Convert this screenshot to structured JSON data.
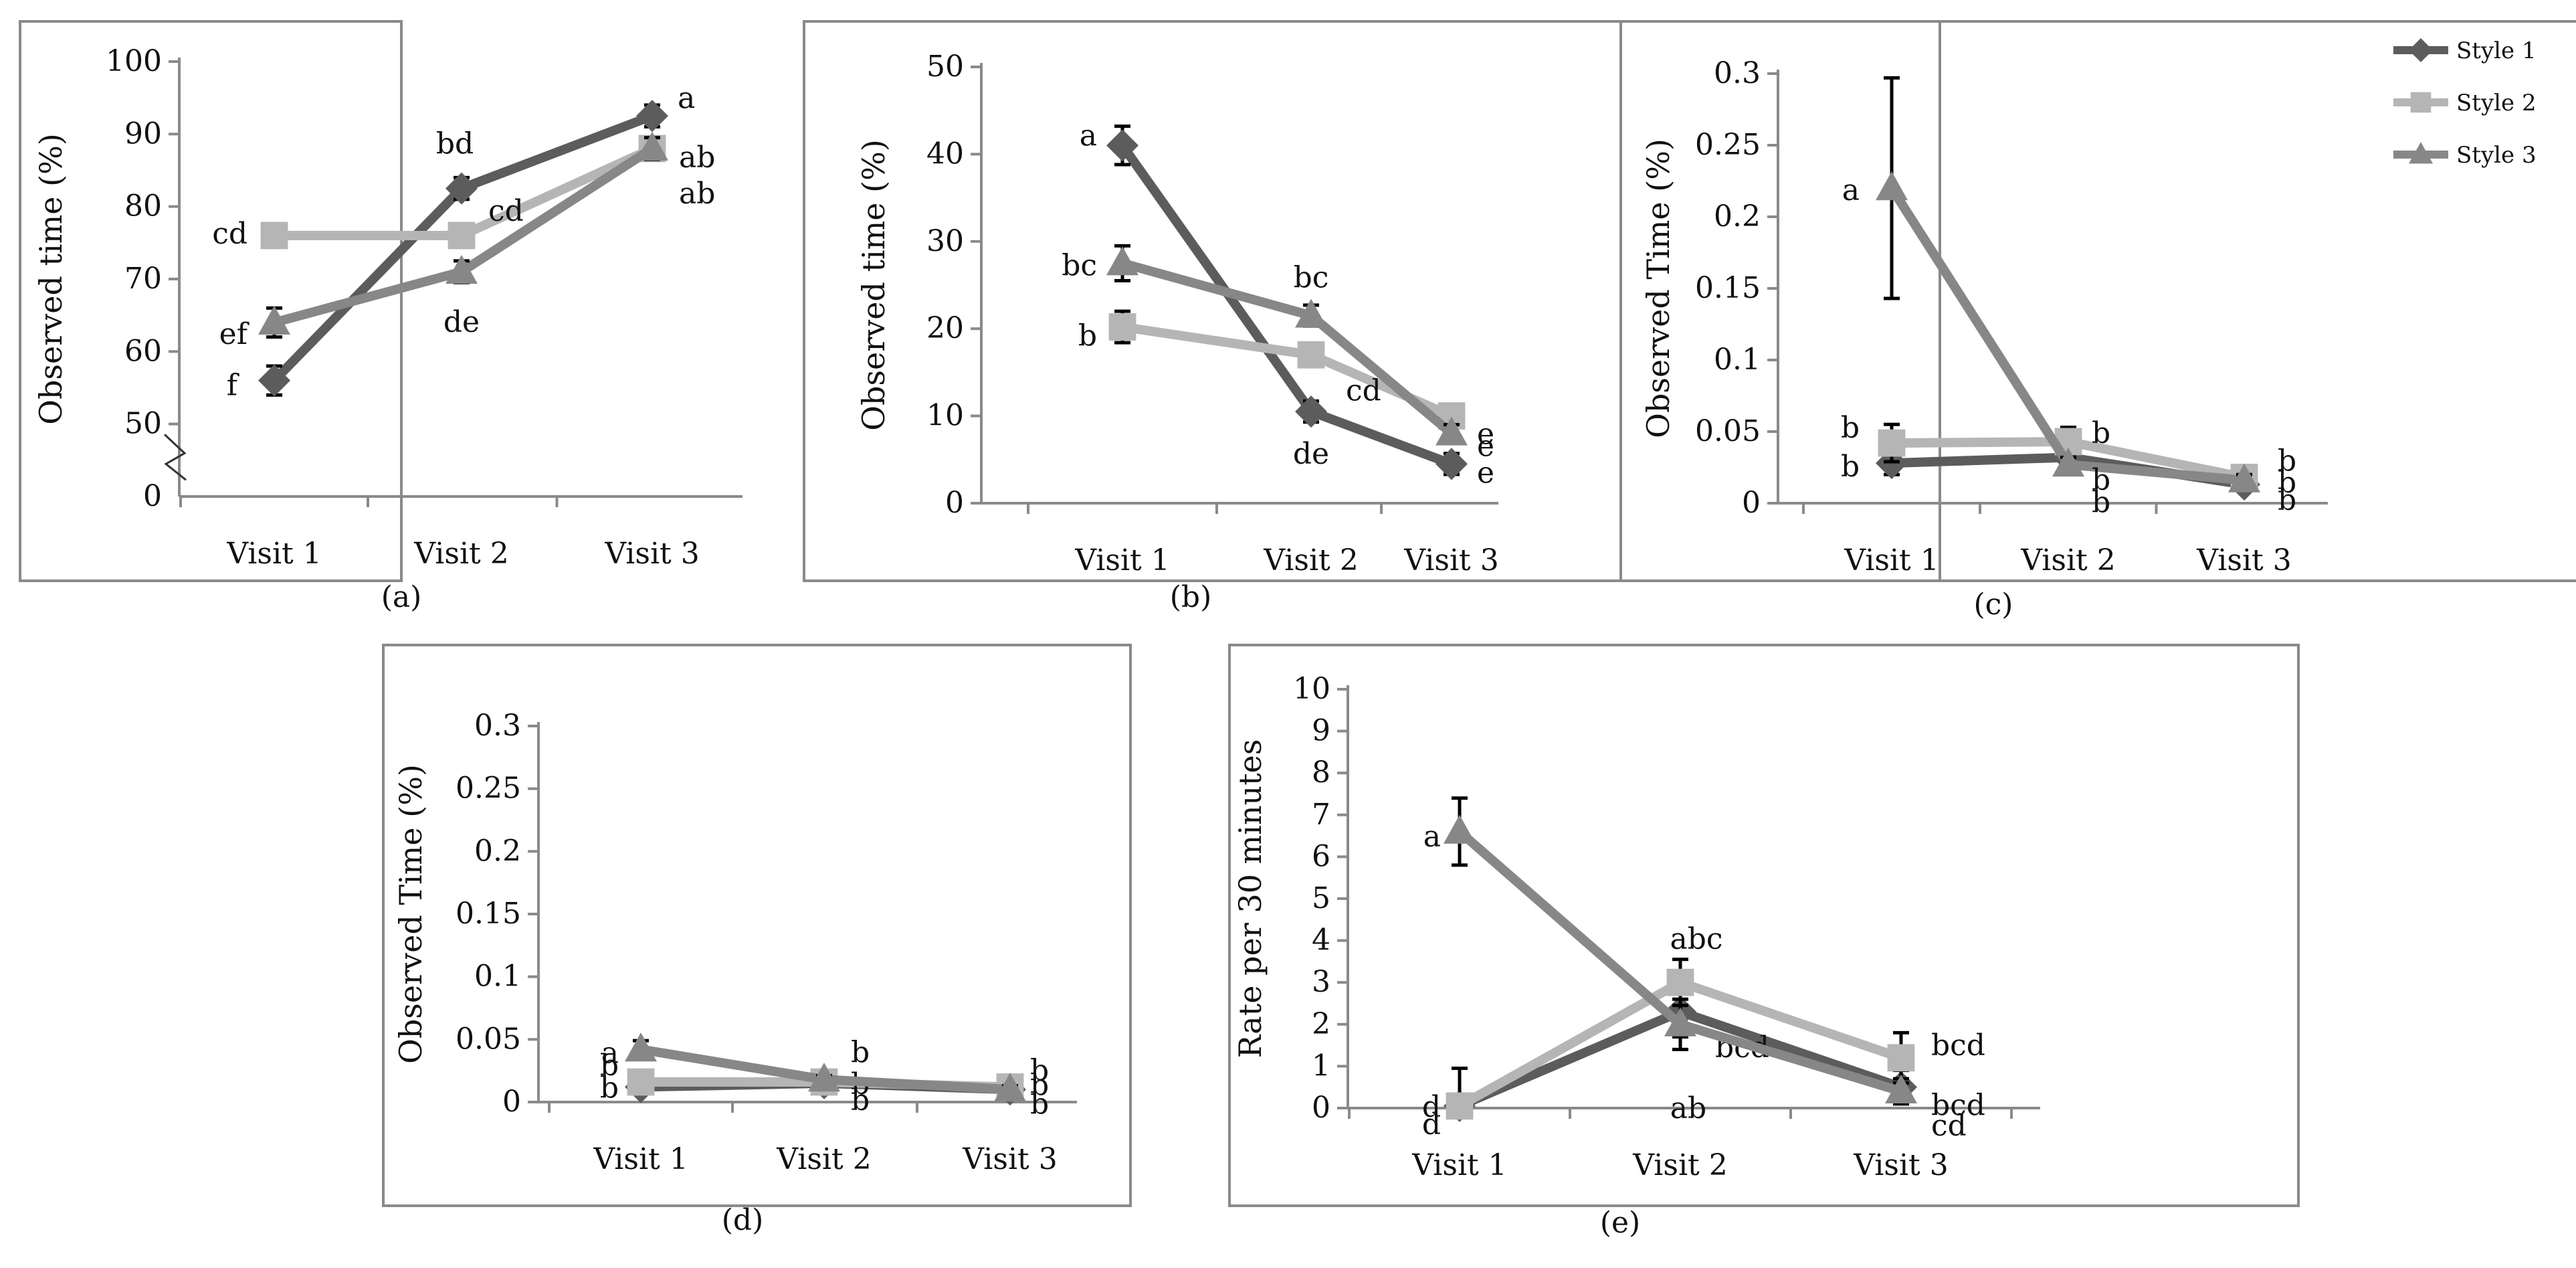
{
  "legend": {
    "items": [
      {
        "name": "Style 1",
        "color": "#5c5c5c",
        "marker": "diamond"
      },
      {
        "name": "Style 2",
        "color": "#b5b5b5",
        "marker": "square"
      },
      {
        "name": "Style 3",
        "color": "#878787",
        "marker": "triangle"
      }
    ]
  },
  "chart_data": [
    {
      "type": "line",
      "panel_label": "(a)",
      "categories": [
        "Visit 1",
        "Visit 2",
        "Visit 3"
      ],
      "ylabel": "Observed time (%)",
      "ylim": [
        40,
        100
      ],
      "yticks": [
        50,
        60,
        70,
        80,
        90,
        100
      ],
      "ytick_labels": [
        "50",
        "60",
        "70",
        "80",
        "90",
        "100"
      ],
      "axis_break": {
        "zero_label": "0"
      },
      "series": [
        {
          "name": "Style 1",
          "values": [
            56,
            82.5,
            92.5
          ],
          "errors": [
            2,
            1.5,
            1.5
          ],
          "letters": [
            "f",
            "bd",
            "a"
          ]
        },
        {
          "name": "Style 2",
          "values": [
            76,
            76,
            88
          ],
          "errors": [
            1.5,
            1.2,
            1.5
          ],
          "letters": [
            "cd",
            "cd",
            "ab"
          ]
        },
        {
          "name": "Style 3",
          "values": [
            64,
            71,
            88
          ],
          "errors": [
            2,
            1.5,
            1.5
          ],
          "letters": [
            "ef",
            "de",
            "ab"
          ]
        }
      ]
    },
    {
      "type": "line",
      "panel_label": "(b)",
      "categories": [
        "Visit 1",
        "Visit 2",
        "Visit 3"
      ],
      "ylabel": "Observed time (%)",
      "ylim": [
        0,
        50
      ],
      "yticks": [
        0,
        10,
        20,
        30,
        40,
        50
      ],
      "ytick_labels": [
        "0",
        "10",
        "20",
        "30",
        "40",
        "50"
      ],
      "series": [
        {
          "name": "Style 1",
          "values": [
            41,
            10.5,
            4.5
          ],
          "errors": [
            2.2,
            1.2,
            1.2
          ],
          "letters": [
            "a",
            "de",
            "e"
          ]
        },
        {
          "name": "Style 2",
          "values": [
            20.2,
            17,
            10
          ],
          "errors": [
            1.8,
            1.2,
            1
          ],
          "letters": [
            "b",
            "cd",
            "e"
          ]
        },
        {
          "name": "Style 3",
          "values": [
            27.5,
            21.5,
            8
          ],
          "errors": [
            2,
            1.2,
            1
          ],
          "letters": [
            "bc",
            "bc",
            "e"
          ]
        }
      ]
    },
    {
      "type": "line",
      "panel_label": "(c)",
      "categories": [
        "Visit 1",
        "Visit 2",
        "Visit 3"
      ],
      "ylabel": "Observed Time (%)",
      "ylim": [
        0,
        0.3
      ],
      "yticks": [
        0,
        0.05,
        0.1,
        0.15,
        0.2,
        0.25,
        0.3
      ],
      "ytick_labels": [
        "0",
        "0.05",
        "0.1",
        "0.15",
        "0.2",
        "0.25",
        "0.3"
      ],
      "series": [
        {
          "name": "Style 1",
          "values": [
            0.028,
            0.032,
            0.013
          ],
          "errors": [
            0.008,
            0.005,
            0.003
          ],
          "letters": [
            "b",
            "b",
            "b"
          ]
        },
        {
          "name": "Style 2",
          "values": [
            0.042,
            0.043,
            0.018
          ],
          "errors": [
            0.013,
            0.01,
            0.004
          ],
          "letters": [
            "b",
            "b",
            "b"
          ]
        },
        {
          "name": "Style 3",
          "values": [
            0.22,
            0.027,
            0.016
          ],
          "errors": [
            0.077,
            0.005,
            0.004
          ],
          "letters": [
            "a",
            "b",
            "b"
          ]
        }
      ]
    },
    {
      "type": "line",
      "panel_label": "(d)",
      "categories": [
        "Visit 1",
        "Visit 2",
        "Visit 3"
      ],
      "ylabel": "Observed Time (%)",
      "ylim": [
        0,
        0.3
      ],
      "yticks": [
        0,
        0.05,
        0.1,
        0.15,
        0.2,
        0.25,
        0.3
      ],
      "ytick_labels": [
        "0",
        "0.05",
        "0.1",
        "0.15",
        "0.2",
        "0.25",
        "0.3"
      ],
      "series": [
        {
          "name": "Style 1",
          "values": [
            0.012,
            0.015,
            0.01
          ],
          "errors": [
            0.003,
            0.003,
            0.003
          ],
          "letters": [
            "b",
            "b",
            "b"
          ]
        },
        {
          "name": "Style 2",
          "values": [
            0.016,
            0.016,
            0.012
          ],
          "errors": [
            0.004,
            0.003,
            0.003
          ],
          "letters": [
            "b",
            "b",
            "b"
          ]
        },
        {
          "name": "Style 3",
          "values": [
            0.042,
            0.018,
            0.01
          ],
          "errors": [
            0.007,
            0.003,
            0.003
          ],
          "letters": [
            "a",
            "b",
            "b"
          ]
        }
      ]
    },
    {
      "type": "line",
      "panel_label": "(e)",
      "categories": [
        "Visit 1",
        "Visit 2",
        "Visit 3"
      ],
      "ylabel": "Rate per 30 minutes",
      "ylim": [
        0,
        10
      ],
      "yticks": [
        0,
        1,
        2,
        3,
        4,
        5,
        6,
        7,
        8,
        9,
        10
      ],
      "ytick_labels": [
        "0",
        "1",
        "2",
        "3",
        "4",
        "5",
        "6",
        "7",
        "8",
        "9",
        "10"
      ],
      "series": [
        {
          "name": "Style 1",
          "values": [
            0.05,
            2.3,
            0.5
          ],
          "errors": [
            0.9,
            0.6,
            0.4
          ],
          "letters": [
            "d",
            "bcd",
            "bcd"
          ]
        },
        {
          "name": "Style 2",
          "values": [
            0.05,
            3,
            1.2
          ],
          "errors": [
            0.9,
            0.55,
            0.6
          ],
          "letters": [
            "d",
            "abc",
            "bcd"
          ]
        },
        {
          "name": "Style 3",
          "values": [
            6.6,
            2,
            0.4
          ],
          "errors": [
            0.8,
            0.6,
            0.3
          ],
          "letters": [
            "a",
            "ab",
            "cd"
          ]
        }
      ]
    }
  ]
}
